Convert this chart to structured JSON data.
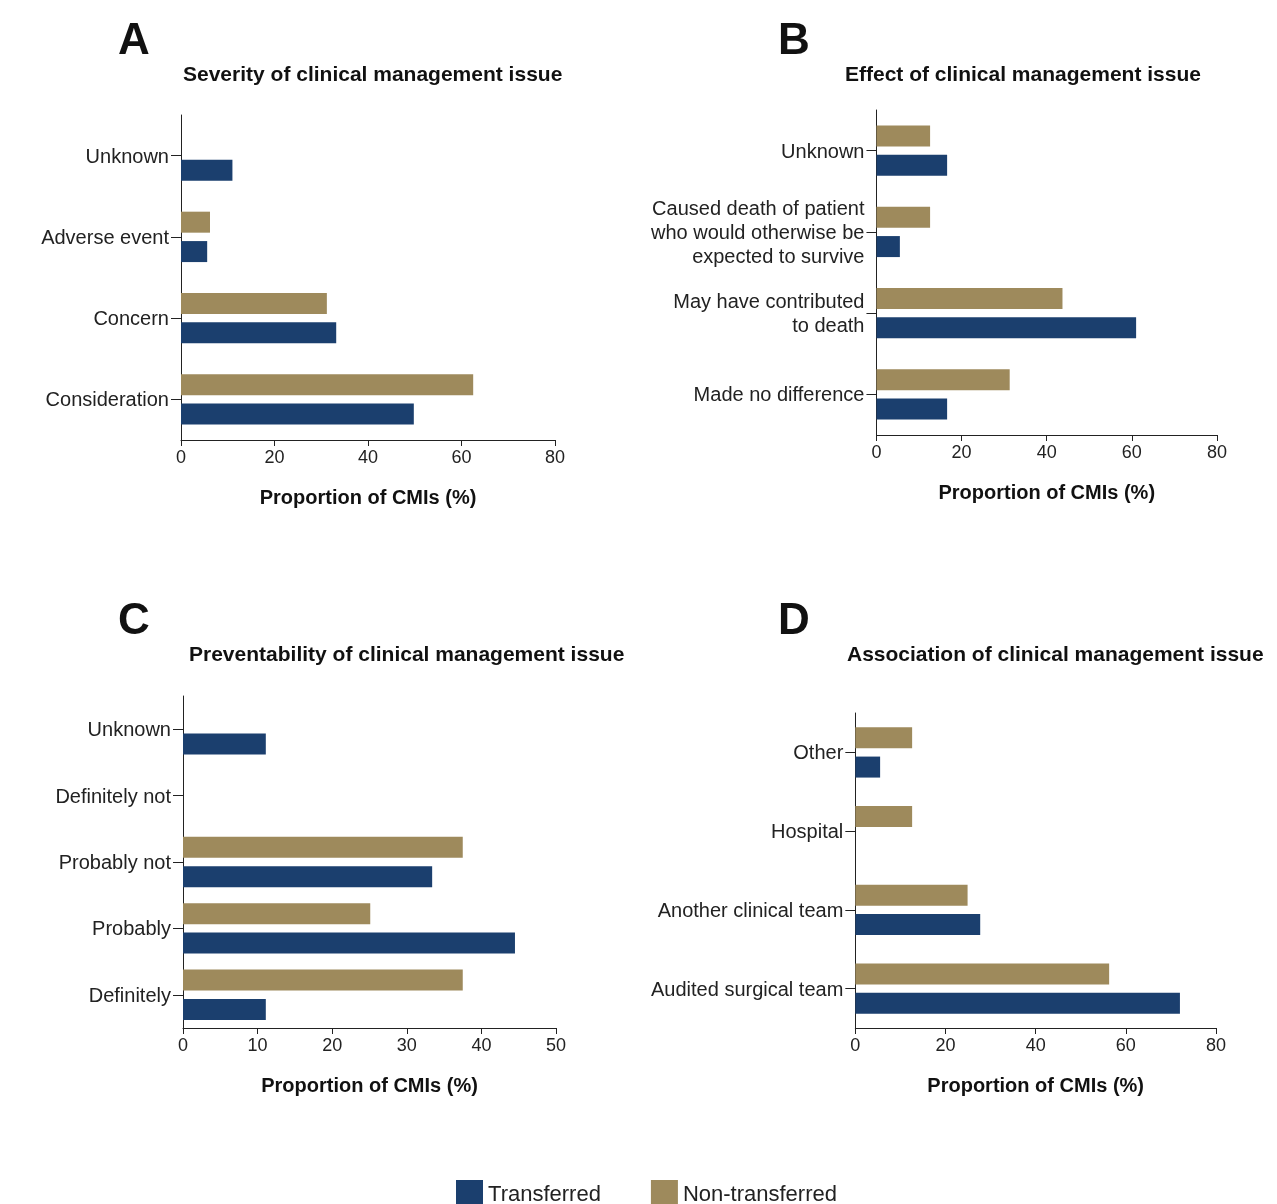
{
  "chart_data": [
    {
      "type": "bar",
      "orientation": "horizontal",
      "title": "Severity of clinical management issue",
      "annotations": [
        "A"
      ],
      "xlabel": "Proportion of CMIs (%)",
      "categories": [
        "Unknown",
        "Adverse event",
        "Concern",
        "Consideration"
      ],
      "xlim": [
        0,
        80
      ],
      "xticks": [
        0,
        20,
        40,
        60,
        80
      ],
      "grid": false,
      "legend": false,
      "series": [
        {
          "color": "#1b3f6e",
          "values": [
            11,
            5.6,
            33.2,
            49.8
          ]
        },
        {
          "color": "#9e8a5c",
          "values": [
            null,
            6.2,
            31.2,
            62.5
          ]
        }
      ]
    },
    {
      "type": "bar",
      "orientation": "horizontal",
      "title": "Effect of clinical management issue",
      "annotations": [
        "B"
      ],
      "xlabel": "Proportion of CMIs (%)",
      "categories": [
        "Unknown",
        "Caused death of patient\nwho would otherwise be\nexpected to survive",
        "May have contributed\nto death",
        "Made no difference"
      ],
      "xlim": [
        0,
        80
      ],
      "xticks": [
        0,
        20,
        40,
        60,
        80
      ],
      "grid": false,
      "legend": false,
      "series": [
        {
          "color": "#1b3f6e",
          "values": [
            16.6,
            5.5,
            61,
            16.6
          ]
        },
        {
          "color": "#9e8a5c",
          "values": [
            12.6,
            12.6,
            43.7,
            31.3
          ]
        }
      ]
    },
    {
      "type": "bar",
      "orientation": "horizontal",
      "title": "Preventability of clinical management issue",
      "annotations": [
        "C"
      ],
      "xlabel": "Proportion of CMIs (%)",
      "categories": [
        "Unknown",
        "Definitely not",
        "Probably not",
        "Probably",
        "Definitely"
      ],
      "xlim": [
        0,
        50
      ],
      "xticks": [
        0,
        10,
        20,
        30,
        40,
        50
      ],
      "grid": false,
      "legend": "bottom",
      "series": [
        {
          "name": "Transferred",
          "color": "#1b3f6e",
          "values": [
            11.1,
            null,
            33.4,
            44.5,
            11.1
          ]
        },
        {
          "name": "Non-transferred",
          "color": "#9e8a5c",
          "values": [
            null,
            null,
            37.5,
            25.1,
            37.5
          ]
        }
      ]
    },
    {
      "type": "bar",
      "orientation": "horizontal",
      "title": "Association of clinical management issue",
      "annotations": [
        "D"
      ],
      "xlabel": "Proportion of CMIs (%)",
      "categories": [
        "Other",
        "Hospital",
        "Another clinical team",
        "Audited surgical team"
      ],
      "xlim": [
        0,
        80
      ],
      "xticks": [
        0,
        20,
        40,
        60,
        80
      ],
      "grid": false,
      "legend": false,
      "series": [
        {
          "color": "#1b3f6e",
          "values": [
            5.5,
            null,
            27.7,
            72
          ]
        },
        {
          "color": "#9e8a5c",
          "values": [
            12.6,
            12.6,
            24.9,
            56.3
          ]
        }
      ]
    }
  ]
}
